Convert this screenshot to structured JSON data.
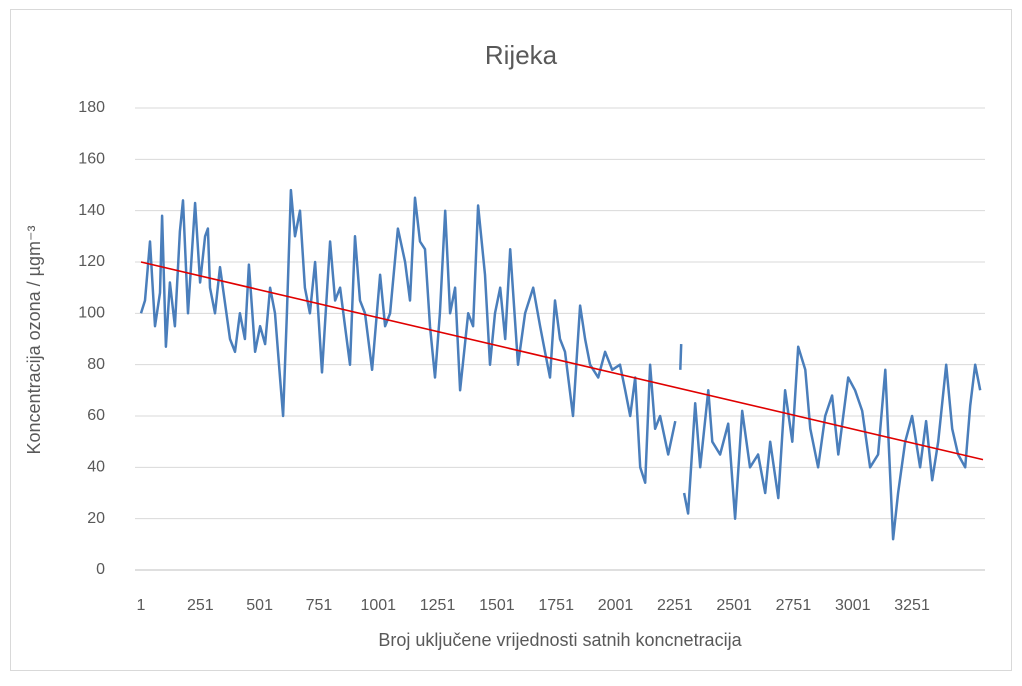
{
  "chart_data": {
    "type": "line",
    "title": "Rijeka",
    "xlabel": "Broj uključene vrijednosti satnih koncnetracija",
    "ylabel": "Koncentracija ozona / µgm⁻³",
    "x": [
      1,
      18,
      39,
      60,
      81,
      90,
      106,
      123,
      144,
      165,
      178,
      199,
      229,
      250,
      271,
      283,
      292,
      313,
      334,
      376,
      397,
      418,
      439,
      456,
      482,
      503,
      524,
      545,
      566,
      587,
      600,
      616,
      633,
      650,
      671,
      692,
      713,
      735,
      764,
      798,
      819,
      840,
      861,
      882,
      903,
      924,
      945,
      975,
      1009,
      1030,
      1051,
      1084,
      1114,
      1135,
      1156,
      1177,
      1198,
      1219,
      1240,
      1261,
      1283,
      1304,
      1325,
      1346,
      1380,
      1401,
      1422,
      1451,
      1472,
      1493,
      1515,
      1536,
      1557,
      1590,
      1620,
      1654,
      1683,
      1704,
      1725,
      1746,
      1767,
      1788,
      1822,
      1852,
      1873,
      1894,
      1928,
      1957,
      1987,
      2020,
      2042,
      2063,
      2084,
      2105,
      2126,
      2147,
      2168,
      2189,
      2223,
      2253,
      2262,
      2274,
      2278,
      2284,
      2290,
      2307,
      2337,
      2358,
      2392,
      2409,
      2442,
      2476,
      2505,
      2535,
      2568,
      2602,
      2632,
      2653,
      2687,
      2716,
      2746,
      2771,
      2801,
      2822,
      2855,
      2885,
      2914,
      2940,
      2982,
      3011,
      3041,
      3074,
      3108,
      3138,
      3171,
      3192,
      3222,
      3251,
      3285,
      3310,
      3336,
      3361,
      3395,
      3420,
      3445,
      3475,
      3496,
      3517,
      3538
    ],
    "series": [
      {
        "color": "#4a7ebb",
        "values": [
          100,
          105,
          128,
          95,
          108,
          138,
          87,
          112,
          95,
          132,
          144,
          100,
          143,
          112,
          130,
          133,
          110,
          100,
          118,
          90,
          85,
          100,
          90,
          119,
          85,
          95,
          88,
          110,
          100,
          75,
          60,
          100,
          148,
          130,
          140,
          110,
          100,
          120,
          77,
          128,
          105,
          110,
          95,
          80,
          130,
          105,
          100,
          78,
          115,
          95,
          100,
          133,
          120,
          105,
          145,
          128,
          125,
          95,
          75,
          100,
          140,
          100,
          110,
          70,
          100,
          95,
          142,
          115,
          80,
          100,
          110,
          90,
          125,
          80,
          100,
          110,
          95,
          85,
          75,
          105,
          90,
          85,
          60,
          103,
          90,
          80,
          75,
          85,
          78,
          80,
          70,
          60,
          75,
          40,
          34,
          80,
          55,
          60,
          45,
          58,
          null,
          78,
          88,
          null,
          30,
          22,
          65,
          40,
          70,
          50,
          45,
          57,
          20,
          62,
          40,
          45,
          30,
          50,
          28,
          70,
          50,
          87,
          78,
          55,
          40,
          60,
          68,
          45,
          75,
          70,
          62,
          40,
          45,
          78,
          12,
          30,
          50,
          60,
          40,
          58,
          35,
          50,
          80,
          55,
          45,
          40,
          64,
          80,
          70
        ]
      }
    ],
    "trendline": {
      "color": "#e00000",
      "x": [
        1,
        3550
      ],
      "values": [
        120,
        43
      ]
    },
    "xlim": [
      1,
      3550
    ],
    "xticks": [
      1,
      251,
      501,
      751,
      1001,
      1251,
      1501,
      1751,
      2001,
      2251,
      2501,
      2751,
      3001,
      3251
    ],
    "ylim": [
      0,
      180
    ],
    "yticks": [
      0,
      20,
      40,
      60,
      80,
      100,
      120,
      140,
      160,
      180
    ],
    "grid": true
  }
}
